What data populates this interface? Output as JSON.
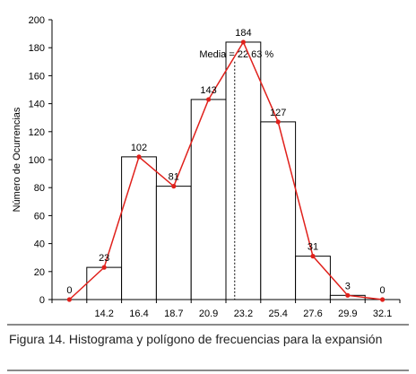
{
  "caption": "Figura 14. Histograma y polígono de frecuencias para la expansión",
  "chart_data": {
    "type": "bar",
    "title": "",
    "xlabel": "",
    "ylabel": "Número de Ocurrencias",
    "ylim": [
      0,
      200
    ],
    "yticks": [
      0,
      20,
      40,
      60,
      80,
      100,
      120,
      140,
      160,
      180,
      200
    ],
    "categories": [
      "14.2",
      "16.4",
      "18.7",
      "20.9",
      "23.2",
      "25.4",
      "27.6",
      "29.9",
      "32.1"
    ],
    "bars": [
      23,
      102,
      81,
      143,
      184,
      127,
      31,
      3
    ],
    "polygon": {
      "color": "#e0201b",
      "values": [
        0,
        23,
        102,
        81,
        143,
        184,
        127,
        31,
        3,
        0
      ],
      "labels": [
        "0",
        "23",
        "102",
        "81",
        "143",
        "184",
        "127",
        "31",
        "3",
        "0"
      ]
    },
    "annotation": {
      "text": "Media = 22.63 %",
      "value": 22.63
    },
    "grid": false,
    "legend": "none"
  }
}
